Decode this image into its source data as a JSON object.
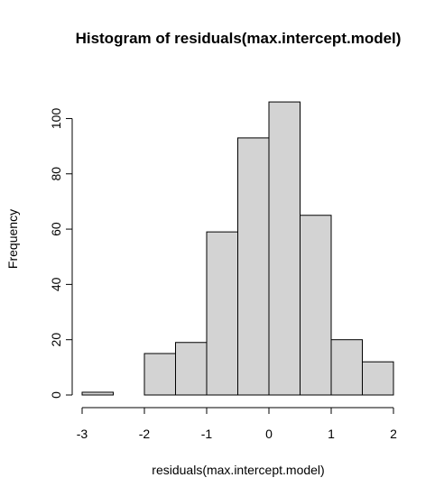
{
  "chart_data": {
    "type": "bar",
    "title": "Histogram of residuals(max.intercept.model)",
    "xlabel": "residuals(max.intercept.model)",
    "ylabel": "Frequency",
    "bins": [
      {
        "x0": -3.0,
        "x1": -2.5,
        "count": 1
      },
      {
        "x0": -2.5,
        "x1": -2.0,
        "count": 0
      },
      {
        "x0": -2.0,
        "x1": -1.5,
        "count": 15
      },
      {
        "x0": -1.5,
        "x1": -1.0,
        "count": 19
      },
      {
        "x0": -1.0,
        "x1": -0.5,
        "count": 59
      },
      {
        "x0": -0.5,
        "x1": 0.0,
        "count": 93
      },
      {
        "x0": 0.0,
        "x1": 0.5,
        "count": 106
      },
      {
        "x0": 0.5,
        "x1": 1.0,
        "count": 65
      },
      {
        "x0": 1.0,
        "x1": 1.5,
        "count": 20
      },
      {
        "x0": 1.5,
        "x1": 2.0,
        "count": 12
      }
    ],
    "xlim": [
      -3,
      2
    ],
    "ylim": [
      0,
      106
    ],
    "x_ticks": [
      "-3",
      "-2",
      "-1",
      "0",
      "1",
      "2"
    ],
    "y_ticks": [
      "0",
      "20",
      "40",
      "60",
      "80",
      "100"
    ],
    "grid": false,
    "bar_color": "#d3d3d3",
    "edge_color": "#000000"
  }
}
